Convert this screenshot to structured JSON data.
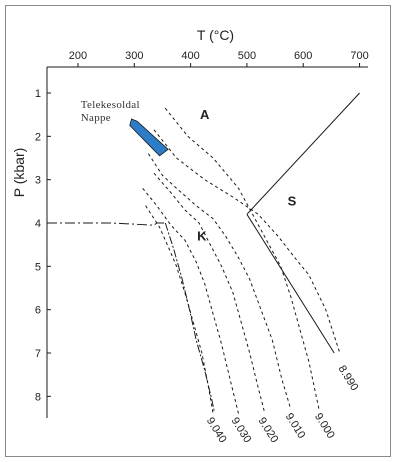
{
  "chart_data": {
    "type": "line",
    "title": "",
    "xlabel": "T (°C)",
    "ylabel": "P (kbar)",
    "x_axis_position": "top",
    "y_axis_inverted": true,
    "xlim": [
      145,
      715
    ],
    "ylim": [
      0.4,
      8.5
    ],
    "xticks": [
      "200",
      "300",
      "400",
      "500",
      "600",
      "700"
    ],
    "yticks": [
      "1",
      "2",
      "3",
      "4",
      "5",
      "6",
      "7",
      "8"
    ],
    "grid": false,
    "field_labels": [
      {
        "text": "A",
        "T": 425,
        "P": 1.6
      },
      {
        "text": "S",
        "T": 580,
        "P": 3.6
      },
      {
        "text": "K",
        "T": 420,
        "P": 4.4
      }
    ],
    "phase_boundaries": [
      {
        "name": "A-S",
        "points": [
          [
            500,
            3.8
          ],
          [
            700,
            1.0
          ]
        ]
      },
      {
        "name": "A-K / K-S",
        "points": [
          [
            500,
            3.8
          ],
          [
            655,
            7.0
          ]
        ]
      },
      {
        "name": "4 kbar line",
        "points": [
          [
            145,
            4.0
          ],
          [
            260,
            4.0
          ],
          [
            335,
            4.05
          ],
          [
            340,
            4.0
          ],
          [
            355,
            4.0
          ]
        ]
      }
    ],
    "isopleths": [
      {
        "label": "8.990",
        "points": [
          [
            335,
            1.85
          ],
          [
            375,
            2.5
          ],
          [
            425,
            3.0
          ],
          [
            475,
            3.4
          ],
          [
            520,
            3.8
          ],
          [
            555,
            4.3
          ],
          [
            585,
            4.8
          ],
          [
            610,
            5.2
          ],
          [
            640,
            6.0
          ],
          [
            665,
            7.0
          ]
        ]
      },
      {
        "label": "9.000",
        "points": [
          [
            355,
            1.35
          ],
          [
            395,
            2.0
          ],
          [
            440,
            2.5
          ],
          [
            485,
            3.2
          ],
          [
            510,
            3.8
          ],
          [
            535,
            4.4
          ],
          [
            560,
            5.0
          ],
          [
            578,
            5.7
          ],
          [
            595,
            6.5
          ],
          [
            610,
            7.2
          ],
          [
            628,
            8.3
          ]
        ]
      },
      {
        "label": "9.010",
        "points": [
          [
            325,
            2.4
          ],
          [
            350,
            2.9
          ],
          [
            375,
            3.2
          ],
          [
            410,
            3.6
          ],
          [
            440,
            3.9
          ],
          [
            462,
            4.3
          ],
          [
            485,
            4.8
          ],
          [
            505,
            5.3
          ],
          [
            525,
            6.0
          ],
          [
            545,
            6.7
          ],
          [
            562,
            7.6
          ],
          [
            578,
            8.3
          ]
        ]
      },
      {
        "label": "9.020",
        "points": [
          [
            335,
            2.85
          ],
          [
            365,
            3.3
          ],
          [
            390,
            3.7
          ],
          [
            415,
            4.0
          ],
          [
            435,
            4.5
          ],
          [
            455,
            5.0
          ],
          [
            475,
            5.6
          ],
          [
            490,
            6.3
          ],
          [
            505,
            7.0
          ],
          [
            520,
            7.8
          ],
          [
            532,
            8.4
          ]
        ]
      },
      {
        "label": "9.030",
        "points": [
          [
            315,
            3.2
          ],
          [
            340,
            3.6
          ],
          [
            365,
            4.05
          ],
          [
            390,
            4.4
          ],
          [
            410,
            4.9
          ],
          [
            425,
            5.4
          ],
          [
            440,
            6.1
          ],
          [
            455,
            6.8
          ],
          [
            470,
            7.6
          ],
          [
            485,
            8.4
          ]
        ]
      },
      {
        "label": "9.040",
        "points": [
          [
            320,
            3.6
          ],
          [
            345,
            4.1
          ],
          [
            362,
            4.6
          ],
          [
            375,
            5.0
          ],
          [
            392,
            5.7
          ],
          [
            405,
            6.3
          ],
          [
            420,
            7.0
          ],
          [
            432,
            7.8
          ],
          [
            440,
            8.4
          ]
        ]
      },
      {
        "label": "9.040 (long-dash)",
        "points": [
          [
            355,
            4.0
          ],
          [
            370,
            4.6
          ],
          [
            385,
            5.3
          ],
          [
            398,
            6.0
          ],
          [
            410,
            6.7
          ],
          [
            425,
            7.4
          ],
          [
            438,
            8.1
          ],
          [
            442,
            8.35
          ]
        ]
      }
    ],
    "iso_labels": [
      {
        "text": "8.990",
        "T": 662,
        "P": 7.35
      },
      {
        "text": "9.000",
        "T": 620,
        "P": 8.45
      },
      {
        "text": "9.010",
        "T": 568,
        "P": 8.45
      },
      {
        "text": "9.020",
        "T": 520,
        "P": 8.55
      },
      {
        "text": "9.030",
        "T": 472,
        "P": 8.55
      },
      {
        "text": "9.040",
        "T": 428,
        "P": 8.55
      }
    ],
    "annotation": {
      "text_lines": [
        "Telekesoldal",
        "Nappe"
      ],
      "T": 205,
      "P": 1.35,
      "box_color": "#2d7cc8",
      "box_points": [
        [
          295,
          1.6
        ],
        [
          305,
          1.65
        ],
        [
          360,
          2.3
        ],
        [
          345,
          2.45
        ],
        [
          292,
          1.75
        ]
      ]
    },
    "colors": {
      "ink": "#1a1a1a",
      "nappe_fill": "#2d7cc8"
    }
  }
}
